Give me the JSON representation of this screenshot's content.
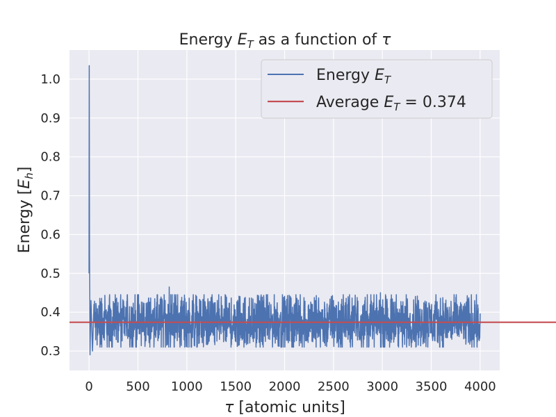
{
  "chart_data": {
    "type": "line",
    "title": {
      "prefix": "Energy ",
      "math": "E",
      "sub": "T",
      "suffix": " as a function of ",
      "symbol": "τ"
    },
    "xlabel": {
      "symbol": "τ",
      "text": " [atomic units]"
    },
    "ylabel": {
      "text": "Energy [",
      "math": "E",
      "sub": "h",
      "suffix": "]"
    },
    "xlim": [
      -200,
      4200
    ],
    "ylim": [
      0.25,
      1.075
    ],
    "x_ticks": [
      0,
      500,
      1000,
      1500,
      2000,
      2500,
      3000,
      3500,
      4000
    ],
    "x_tick_labels": [
      "0",
      "500",
      "1000",
      "1500",
      "2000",
      "2500",
      "3000",
      "3500",
      "4000"
    ],
    "y_ticks": [
      0.3,
      0.4,
      0.5,
      0.6,
      0.7,
      0.8,
      0.9,
      1.0
    ],
    "y_tick_labels": [
      "0.3",
      "0.4",
      "0.5",
      "0.6",
      "0.7",
      "0.8",
      "0.9",
      "1.0"
    ],
    "grid": true,
    "legend_position": "top-right",
    "series": [
      {
        "name": "Energy E_T",
        "legend": {
          "prefix": "Energy ",
          "math": "E",
          "sub": "T"
        },
        "color": "#4c72b0",
        "kind": "noisy-trace",
        "x_range": [
          0,
          4000
        ],
        "initial_points": [
          [
            0,
            0.5
          ],
          [
            2,
            1.035
          ],
          [
            5,
            0.55
          ],
          [
            10,
            0.29
          ],
          [
            20,
            0.43
          ],
          [
            35,
            0.3
          ],
          [
            50,
            0.42
          ]
        ],
        "mean": 0.374,
        "typical_range": [
          0.31,
          0.465
        ],
        "notable_peaks": [
          [
            820,
            0.465
          ],
          [
            2980,
            0.45
          ]
        ]
      },
      {
        "name": "Average E_T = 0.374",
        "legend": {
          "prefix": "Average ",
          "math": "E",
          "sub": "T",
          "suffix": " = 0.374"
        },
        "color": "#c44e52",
        "kind": "hline",
        "y": 0.374
      }
    ]
  }
}
